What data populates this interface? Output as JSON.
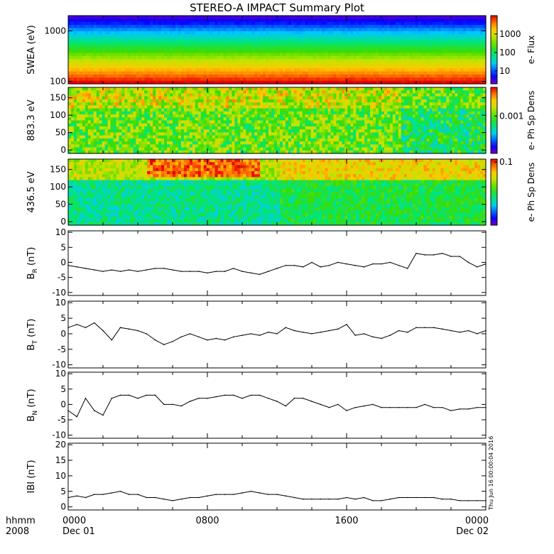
{
  "title": "STEREO-A IMPACT Summary Plot",
  "time_axis": {
    "corner_labels": [
      "hhmm",
      "2008"
    ],
    "ticks": [
      {
        "hour": 0,
        "time": "0000",
        "date": "Dec 01"
      },
      {
        "hour": 8,
        "time": "0800",
        "date": ""
      },
      {
        "hour": 16,
        "time": "1600",
        "date": ""
      },
      {
        "hour": 24,
        "time": "0000",
        "date": "Dec 02"
      }
    ],
    "range_hours": [
      0,
      24
    ]
  },
  "timestamp": "Thu Jun 16 00:00:04 2016",
  "colors": {
    "axes": "#000000",
    "line": "#000000",
    "background": "#ffffff"
  },
  "chart_data": [
    {
      "type": "heatmap",
      "panel": "swea",
      "ylabel": "SWEA (eV)",
      "y_scale": "log",
      "ylim": [
        90,
        2000
      ],
      "yticks": [
        {
          "v": 100,
          "label": "100"
        },
        {
          "v": 1000,
          "label": "1000"
        }
      ],
      "colorbar": {
        "label": "e- Flux",
        "scale": "log",
        "range": [
          2,
          10000
        ],
        "ticks": [
          {
            "v": 10,
            "label": "10"
          },
          {
            "v": 100,
            "label": "100"
          },
          {
            "v": 1000,
            "label": "1000"
          }
        ]
      },
      "description": "energy spectrogram; flux decreases with energy, nearly steady over the day"
    },
    {
      "type": "heatmap",
      "panel": "pad883",
      "ylabel": "883.3 eV",
      "ylim": [
        -10,
        180
      ],
      "yticks": [
        {
          "v": 0,
          "label": "0"
        },
        {
          "v": 50,
          "label": "50"
        },
        {
          "v": 100,
          "label": "100"
        },
        {
          "v": 150,
          "label": "150"
        }
      ],
      "colorbar": {
        "label": "e- Ph Sp Dens",
        "scale": "log",
        "range": [
          2e-05,
          0.02
        ],
        "ticks": [
          {
            "v": 0.001,
            "label": "0.001"
          }
        ]
      }
    },
    {
      "type": "heatmap",
      "panel": "pad436",
      "ylabel": "436.5 eV",
      "ylim": [
        -10,
        180
      ],
      "yticks": [
        {
          "v": 0,
          "label": "0"
        },
        {
          "v": 50,
          "label": "50"
        },
        {
          "v": 100,
          "label": "100"
        },
        {
          "v": 150,
          "label": "150"
        }
      ],
      "colorbar": {
        "label": "e- Ph Sp Dens",
        "scale": "log",
        "range": [
          0.002,
          0.12
        ],
        "ticks": [
          {
            "v": 0.1,
            "label": "0.1"
          }
        ]
      }
    },
    {
      "type": "line",
      "panel": "br",
      "ylabel": "B",
      "ylabel_sub": "R",
      "ylabel_unit": "(nT)",
      "ylim": [
        -11,
        10.5
      ],
      "yticks": [
        {
          "v": -10,
          "label": "-10"
        },
        {
          "v": -5,
          "label": "-5"
        },
        {
          "v": 0,
          "label": "0"
        },
        {
          "v": 5,
          "label": "5"
        },
        {
          "v": 10,
          "label": "10"
        }
      ],
      "x": [
        0,
        0.5,
        1,
        1.5,
        2,
        2.5,
        3,
        3.5,
        4,
        4.5,
        5,
        5.5,
        6,
        6.5,
        7,
        7.5,
        8,
        8.5,
        9,
        9.5,
        10,
        10.5,
        11,
        11.5,
        12,
        12.5,
        13,
        13.5,
        14,
        14.5,
        15,
        15.5,
        16,
        16.5,
        17,
        17.5,
        18,
        18.5,
        19,
        19.5,
        20,
        20.5,
        21,
        21.5,
        22,
        22.5,
        23,
        23.5,
        24
      ],
      "y": [
        -1,
        -1.5,
        -2,
        -2.5,
        -3,
        -2.5,
        -3,
        -2.5,
        -3,
        -2.5,
        -2,
        -2,
        -2.5,
        -3,
        -3,
        -3,
        -3.5,
        -3,
        -3,
        -2,
        -3,
        -3.5,
        -4,
        -3,
        -2,
        -1,
        -1,
        -1.5,
        0,
        -1.5,
        -1,
        0,
        -0.5,
        -1,
        -1.5,
        -0.5,
        -0.5,
        0,
        -1,
        -2,
        3,
        2.5,
        2.5,
        3,
        2,
        2,
        0,
        -1.5,
        -0.5
      ]
    },
    {
      "type": "line",
      "panel": "bt",
      "ylabel": "B",
      "ylabel_sub": "T",
      "ylabel_unit": "(nT)",
      "ylim": [
        -11,
        10.5
      ],
      "yticks": [
        {
          "v": -10,
          "label": "-10"
        },
        {
          "v": -5,
          "label": "-5"
        },
        {
          "v": 0,
          "label": "0"
        },
        {
          "v": 5,
          "label": "5"
        },
        {
          "v": 10,
          "label": "10"
        }
      ],
      "x": [
        0,
        0.5,
        1,
        1.5,
        2,
        2.5,
        3,
        3.5,
        4,
        4.5,
        5,
        5.5,
        6,
        6.5,
        7,
        7.5,
        8,
        8.5,
        9,
        9.5,
        10,
        10.5,
        11,
        11.5,
        12,
        12.5,
        13,
        13.5,
        14,
        14.5,
        15,
        15.5,
        16,
        16.5,
        17,
        17.5,
        18,
        18.5,
        19,
        19.5,
        20,
        20.5,
        21,
        21.5,
        22,
        22.5,
        23,
        23.5,
        24
      ],
      "y": [
        2,
        3,
        2,
        3.5,
        1,
        -2,
        2,
        1.5,
        1,
        0,
        -2,
        -3.5,
        -2.5,
        -1,
        0,
        -1,
        -2,
        -1.5,
        -2,
        -1,
        -0.5,
        0,
        -0.5,
        0.5,
        0,
        2,
        1,
        0.5,
        0,
        0.5,
        1,
        1.5,
        3,
        -0.5,
        0,
        -1,
        -1.5,
        -0.5,
        1,
        0.5,
        2,
        2,
        2,
        1.5,
        1,
        0.5,
        1,
        0,
        1
      ]
    },
    {
      "type": "line",
      "panel": "bn",
      "ylabel": "B",
      "ylabel_sub": "N",
      "ylabel_unit": "(nT)",
      "ylim": [
        -11,
        10.5
      ],
      "yticks": [
        {
          "v": -10,
          "label": "-10"
        },
        {
          "v": -5,
          "label": "-5"
        },
        {
          "v": 0,
          "label": "0"
        },
        {
          "v": 5,
          "label": "5"
        },
        {
          "v": 10,
          "label": "10"
        }
      ],
      "x": [
        0,
        0.5,
        1,
        1.5,
        2,
        2.5,
        3,
        3.5,
        4,
        4.5,
        5,
        5.5,
        6,
        6.5,
        7,
        7.5,
        8,
        8.5,
        9,
        9.5,
        10,
        10.5,
        11,
        11.5,
        12,
        12.5,
        13,
        13.5,
        14,
        14.5,
        15,
        15.5,
        16,
        16.5,
        17,
        17.5,
        18,
        18.5,
        19,
        19.5,
        20,
        20.5,
        21,
        21.5,
        22,
        22.5,
        23,
        23.5,
        24
      ],
      "y": [
        -2,
        -4,
        2,
        -2,
        -3.5,
        2,
        3,
        3,
        2,
        3,
        3,
        0,
        0,
        -0.5,
        1,
        2,
        2,
        2.5,
        3,
        3,
        2,
        3,
        3,
        2,
        1,
        -0.5,
        2,
        2,
        1,
        0,
        -1,
        0,
        -2,
        -1,
        -0.5,
        0,
        -1,
        -1,
        -1,
        -1,
        -1,
        0,
        -1,
        -1,
        -2,
        -1.5,
        -1.5,
        -1,
        -1
      ]
    },
    {
      "type": "line",
      "panel": "btot",
      "ylabel": "IBI (nT)",
      "ylim": [
        -1,
        20.5
      ],
      "yticks": [
        {
          "v": 0,
          "label": "0"
        },
        {
          "v": 5,
          "label": "5"
        },
        {
          "v": 10,
          "label": "10"
        },
        {
          "v": 15,
          "label": "15"
        },
        {
          "v": 20,
          "label": "20"
        }
      ],
      "x": [
        0,
        0.5,
        1,
        1.5,
        2,
        2.5,
        3,
        3.5,
        4,
        4.5,
        5,
        5.5,
        6,
        6.5,
        7,
        7.5,
        8,
        8.5,
        9,
        9.5,
        10,
        10.5,
        11,
        11.5,
        12,
        12.5,
        13,
        13.5,
        14,
        14.5,
        15,
        15.5,
        16,
        16.5,
        17,
        17.5,
        18,
        18.5,
        19,
        19.5,
        20,
        20.5,
        21,
        21.5,
        22,
        22.5,
        23,
        23.5,
        24
      ],
      "y": [
        3,
        3.5,
        3,
        4,
        4,
        4.5,
        5,
        4,
        4,
        3,
        3,
        2.5,
        2,
        2.5,
        3,
        3,
        3.5,
        4,
        4,
        4,
        4.5,
        5,
        4.5,
        4,
        4,
        3.5,
        3,
        2.5,
        2.5,
        2.5,
        2.5,
        2.5,
        3,
        2.5,
        3,
        2,
        2,
        2.5,
        3,
        3,
        3,
        3,
        3,
        2.5,
        2.5,
        2,
        2,
        2,
        2
      ]
    }
  ]
}
